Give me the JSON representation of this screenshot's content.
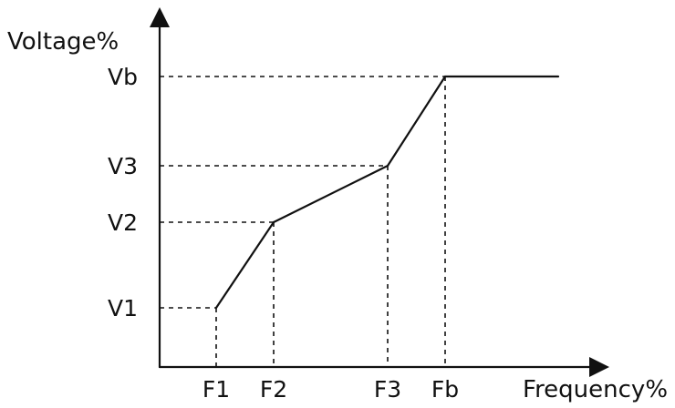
{
  "chart_data": {
    "type": "line",
    "title": "",
    "xlabel": "Frequency%",
    "ylabel": "Voltage%",
    "x_ticks": [
      "F1",
      "F2",
      "F3",
      "Fb"
    ],
    "y_ticks": [
      "V1",
      "V2",
      "V3",
      "Vb"
    ],
    "points": [
      {
        "x": "F1",
        "y": "V1"
      },
      {
        "x": "F2",
        "y": "V2"
      },
      {
        "x": "F3",
        "y": "V3"
      },
      {
        "x": "Fb",
        "y": "Vb"
      }
    ],
    "tail_to_axis_end": true,
    "grid": false,
    "legend": "none"
  }
}
